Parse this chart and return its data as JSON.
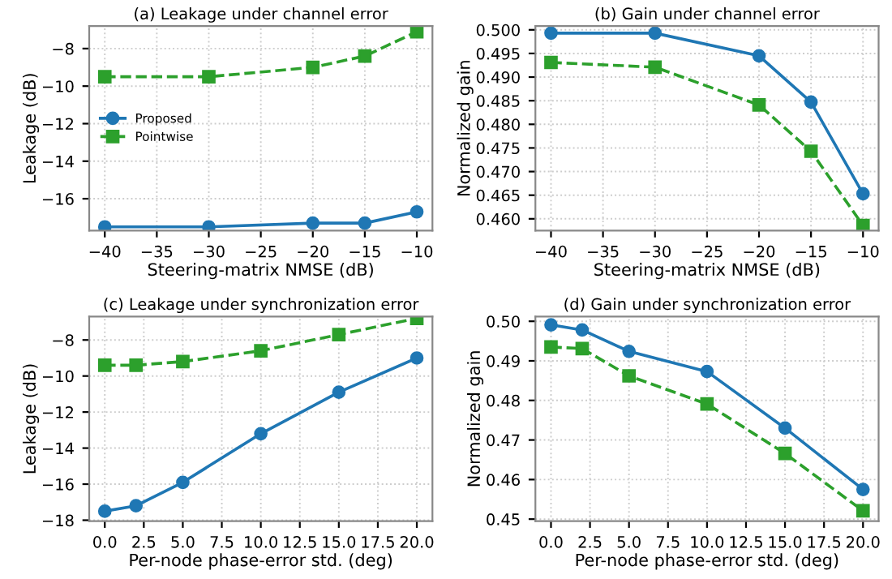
{
  "chart_data": [
    {
      "type": "line",
      "title": "(a) Leakage under channel error",
      "xlabel": "Steering-matrix NMSE (dB)",
      "ylabel": "Leakage (dB)",
      "x": [
        -40,
        -30,
        -20,
        -15,
        -10
      ],
      "xlim": [
        -41.5,
        -8.5
      ],
      "xticks": [
        -40,
        -35,
        -30,
        -25,
        -20,
        -15,
        -10
      ],
      "ylim": [
        -17.7,
        -6.8
      ],
      "yticks": [
        -16,
        -14,
        -12,
        -10,
        -8
      ],
      "grid": true,
      "legend": "center left",
      "series": [
        {
          "name": "Proposed",
          "color": "#1f77b4",
          "marker": "circle",
          "line_style": "solid",
          "values": [
            -17.5,
            -17.5,
            -17.3,
            -17.3,
            -16.7
          ]
        },
        {
          "name": "Pointwise",
          "color": "#2ca02c",
          "marker": "square",
          "line_style": "dashed",
          "values": [
            -9.5,
            -9.5,
            -9.0,
            -8.4,
            -7.1
          ]
        }
      ]
    },
    {
      "type": "line",
      "title": "(b) Gain under channel error",
      "xlabel": "Steering-matrix NMSE (dB)",
      "ylabel": "Normalized gain",
      "x": [
        -40,
        -30,
        -20,
        -15,
        -10
      ],
      "xlim": [
        -41.5,
        -8.5
      ],
      "xticks": [
        -40,
        -35,
        -30,
        -25,
        -20,
        -15,
        -10
      ],
      "ylim": [
        0.4575,
        0.5008
      ],
      "yticks": [
        {
          "value": 0.46,
          "label": "0.460"
        },
        {
          "value": 0.465,
          "label": "0.465"
        },
        {
          "value": 0.47,
          "label": "0.470"
        },
        {
          "value": 0.475,
          "label": "0.475"
        },
        {
          "value": 0.48,
          "label": "0.480"
        },
        {
          "value": 0.485,
          "label": "0.485"
        },
        {
          "value": 0.49,
          "label": "0.490"
        },
        {
          "value": 0.495,
          "label": "0.495"
        },
        {
          "value": 0.5,
          "label": "0.500"
        }
      ],
      "grid": true,
      "series": [
        {
          "color": "#1f77b4",
          "marker": "circle",
          "line_style": "solid",
          "values": [
            0.4993,
            0.4993,
            0.4945,
            0.4847,
            0.4653
          ]
        },
        {
          "color": "#2ca02c",
          "marker": "square",
          "line_style": "dashed",
          "values": [
            0.4931,
            0.4921,
            0.4841,
            0.4743,
            0.4586
          ]
        }
      ]
    },
    {
      "type": "line",
      "title": "(c) Leakage under synchronization error",
      "xlabel": "Per-node phase-error std. (deg)",
      "ylabel": "Leakage (dB)",
      "x": [
        0,
        2,
        5,
        10,
        15,
        20
      ],
      "xlim": [
        -1,
        21
      ],
      "xticks": [
        {
          "value": 0,
          "label": "0.0"
        },
        {
          "value": 2.5,
          "label": "2.5"
        },
        {
          "value": 5,
          "label": "5.0"
        },
        {
          "value": 7.5,
          "label": "7.5"
        },
        {
          "value": 10,
          "label": "10.0"
        },
        {
          "value": 12.5,
          "label": "12.5"
        },
        {
          "value": 15,
          "label": "15.0"
        },
        {
          "value": 17.5,
          "label": "17.5"
        },
        {
          "value": 20,
          "label": "20.0"
        }
      ],
      "ylim": [
        -18.05,
        -6.7
      ],
      "yticks": [
        -18,
        -16,
        -14,
        -12,
        -10,
        -8
      ],
      "grid": true,
      "series": [
        {
          "color": "#1f77b4",
          "marker": "circle",
          "line_style": "solid",
          "values": [
            -17.5,
            -17.2,
            -15.9,
            -13.2,
            -10.9,
            -9.0
          ]
        },
        {
          "color": "#2ca02c",
          "marker": "square",
          "line_style": "dashed",
          "values": [
            -9.4,
            -9.4,
            -9.2,
            -8.6,
            -7.7,
            -6.8
          ]
        }
      ]
    },
    {
      "type": "line",
      "title": "(d) Gain under synchronization error",
      "xlabel": "Per-node phase-error std. (deg)",
      "ylabel": "Normalized gain",
      "x": [
        0,
        2,
        5,
        10,
        15,
        20
      ],
      "xlim": [
        -1,
        21
      ],
      "xticks": [
        {
          "value": 0,
          "label": "0.0"
        },
        {
          "value": 2.5,
          "label": "2.5"
        },
        {
          "value": 5,
          "label": "5.0"
        },
        {
          "value": 7.5,
          "label": "7.5"
        },
        {
          "value": 10,
          "label": "10.0"
        },
        {
          "value": 12.5,
          "label": "12.5"
        },
        {
          "value": 15,
          "label": "15.0"
        },
        {
          "value": 17.5,
          "label": "17.5"
        },
        {
          "value": 20,
          "label": "20.0"
        }
      ],
      "ylim": [
        0.4495,
        0.5012
      ],
      "yticks": [
        {
          "value": 0.45,
          "label": "0.45"
        },
        {
          "value": 0.46,
          "label": "0.46"
        },
        {
          "value": 0.47,
          "label": "0.47"
        },
        {
          "value": 0.48,
          "label": "0.48"
        },
        {
          "value": 0.49,
          "label": "0.49"
        },
        {
          "value": 0.5,
          "label": "0.50"
        }
      ],
      "grid": true,
      "series": [
        {
          "color": "#1f77b4",
          "marker": "circle",
          "line_style": "solid",
          "values": [
            0.4991,
            0.4978,
            0.4924,
            0.4873,
            0.473,
            0.4575
          ]
        },
        {
          "color": "#2ca02c",
          "marker": "square",
          "line_style": "dashed",
          "values": [
            0.4935,
            0.4931,
            0.4862,
            0.4791,
            0.4666,
            0.4521
          ]
        }
      ]
    }
  ]
}
